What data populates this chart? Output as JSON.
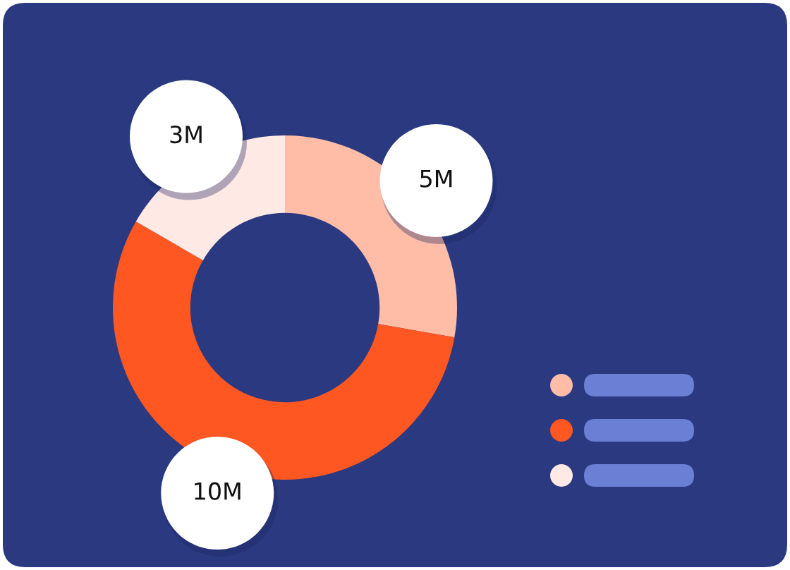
{
  "chart_data": {
    "type": "donut",
    "categories": [
      null,
      null,
      null
    ],
    "values": [
      5,
      10,
      3
    ],
    "colors": [
      "#ffbda8",
      "#ff5722",
      "#ffe9e5"
    ],
    "value_labels": [
      "5M",
      "10M",
      "3M"
    ]
  }
}
